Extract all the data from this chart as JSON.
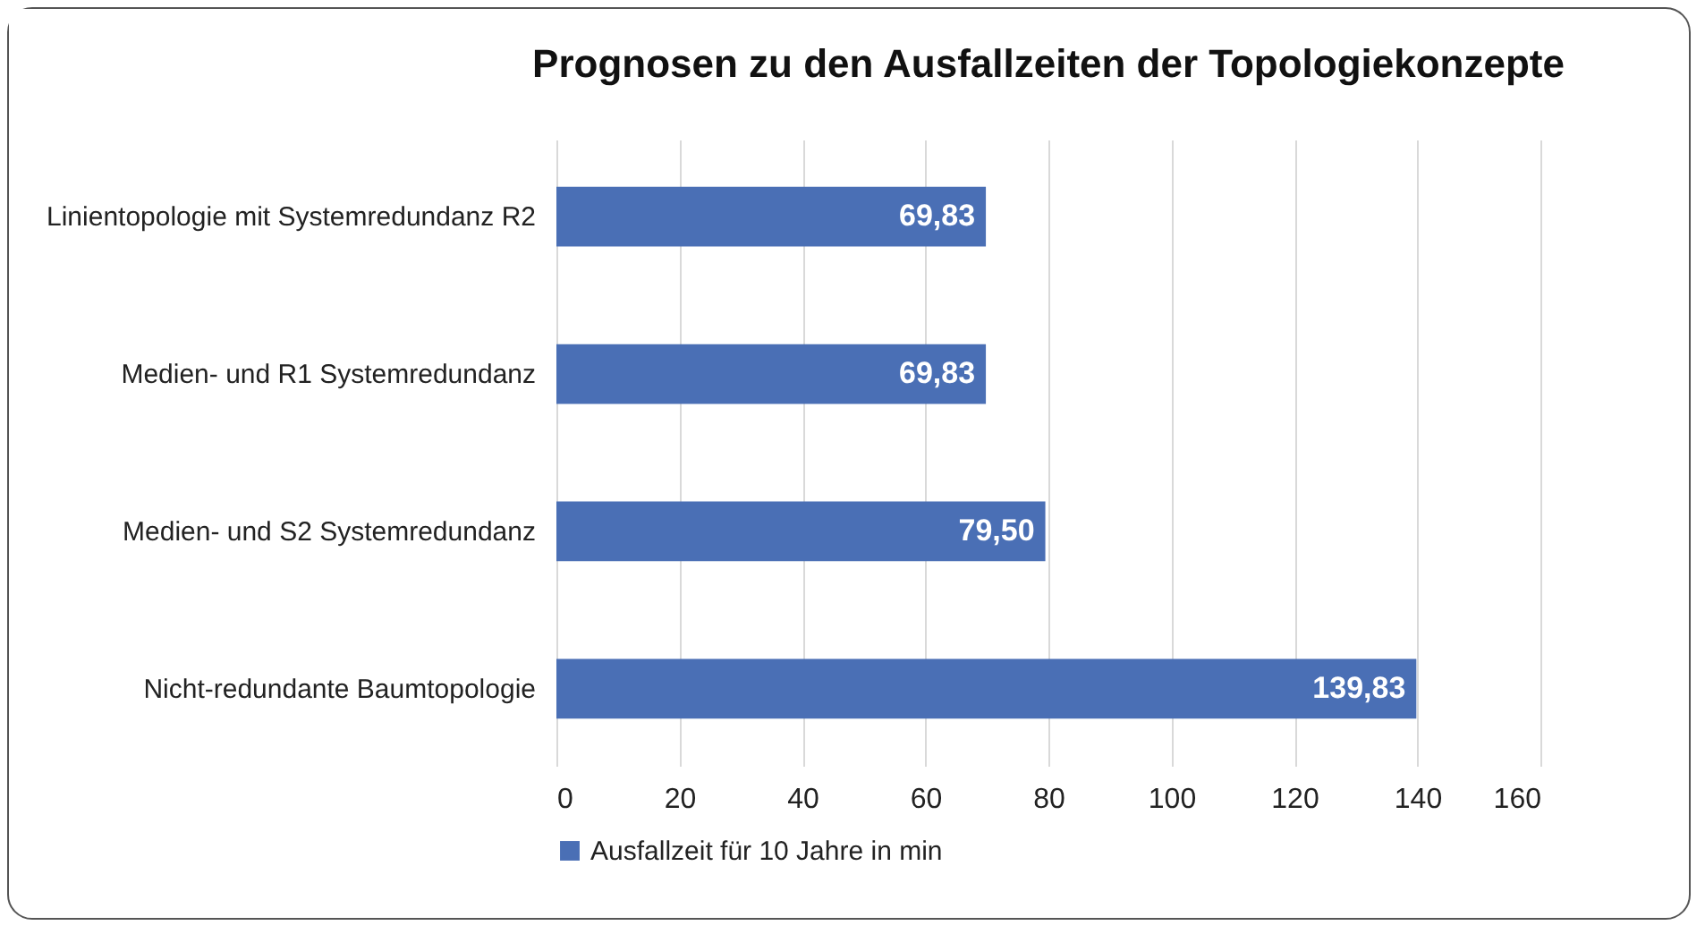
{
  "chart_data": {
    "type": "bar",
    "orientation": "horizontal",
    "title": "Prognosen zu den Ausfallzeiten der Topologiekonzepte",
    "categories": [
      "Linientopologie mit Systemredundanz R2",
      "Medien- und R1 Systemredundanz",
      "Medien- und S2 Systemredundanz",
      "Nicht-redundante Baumtopologie"
    ],
    "series": [
      {
        "name": "Ausfallzeit für 10 Jahre in min",
        "color": "#4a6fb5",
        "values": [
          69.83,
          69.83,
          79.5,
          139.83
        ],
        "value_labels": [
          "69,83",
          "69,83",
          "79,50",
          "139,83"
        ]
      }
    ],
    "xlim": [
      0,
      160
    ],
    "xticks": [
      0,
      20,
      40,
      60,
      80,
      100,
      120,
      140,
      160
    ],
    "grid": "x",
    "legend": "bottom"
  }
}
